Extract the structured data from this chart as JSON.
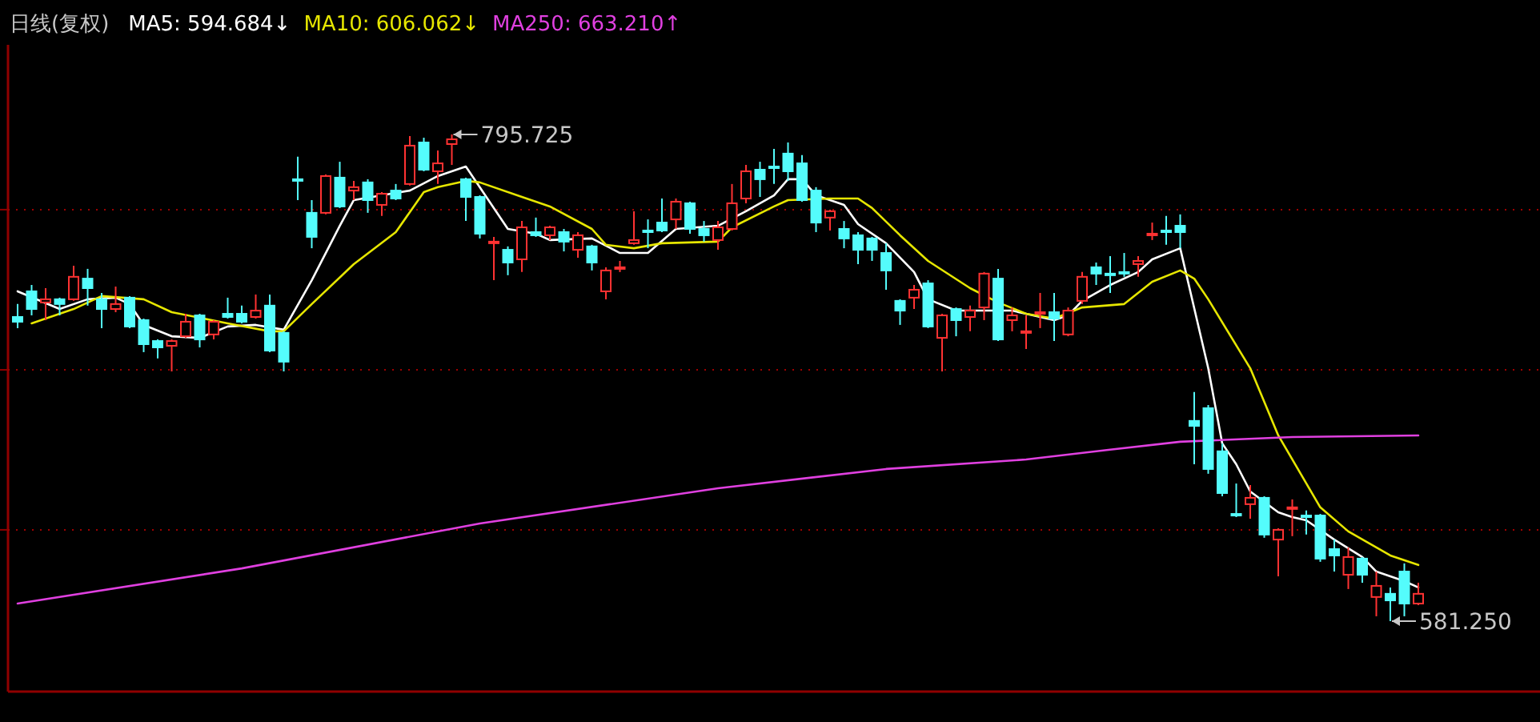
{
  "chart_data": {
    "type": "candlestick",
    "title": "日线(复权)",
    "legend": "top left",
    "grid": "y",
    "marker": "none",
    "categories": [
      null,
      null,
      null,
      null,
      null,
      null,
      null,
      null,
      null,
      null,
      null,
      null,
      null,
      null,
      null,
      null,
      null,
      null,
      null,
      null,
      null,
      null,
      null,
      null,
      null,
      null,
      null,
      null,
      null,
      null,
      null,
      null,
      null,
      null,
      null,
      null,
      null,
      null,
      null,
      null,
      null,
      null,
      null,
      null,
      null,
      null,
      null,
      null,
      null,
      null,
      null,
      null,
      null,
      null,
      null,
      null,
      null,
      null,
      null,
      null,
      null,
      null,
      null,
      null,
      null,
      null,
      null,
      null,
      null,
      null,
      null,
      null,
      null,
      null,
      null,
      null,
      null,
      null,
      null,
      null,
      null,
      null,
      null,
      null,
      null,
      null,
      null,
      null,
      null,
      null,
      null,
      null,
      null,
      null,
      null,
      null,
      null,
      null,
      null,
      null,
      null
    ],
    "ohlc": [
      [
        715.3,
        721.0,
        710.4,
        713.2
      ],
      [
        726.6,
        729.4,
        716.0,
        718.8
      ],
      [
        721.7,
        728.0,
        713.9,
        723.1
      ],
      [
        723.1,
        723.8,
        716.0,
        721.0
      ],
      [
        723.1,
        737.9,
        722.4,
        733.0
      ],
      [
        732.2,
        736.5,
        720.3,
        728.0
      ],
      [
        723.1,
        725.9,
        710.4,
        718.8
      ],
      [
        718.8,
        728.7,
        717.4,
        721.0
      ],
      [
        723.8,
        724.5,
        710.4,
        711.1
      ],
      [
        713.9,
        714.6,
        699.8,
        703.3
      ],
      [
        704.7,
        705.4,
        697.0,
        701.9
      ],
      [
        702.6,
        705.4,
        691.3,
        704.7
      ],
      [
        706.8,
        716.7,
        706.1,
        713.2
      ],
      [
        716.0,
        716.7,
        701.9,
        705.4
      ],
      [
        707.6,
        713.9,
        705.4,
        713.2
      ],
      [
        716.7,
        723.8,
        714.6,
        715.3
      ],
      [
        716.7,
        720.3,
        712.5,
        713.2
      ],
      [
        715.3,
        725.2,
        714.6,
        718.1
      ],
      [
        720.3,
        725.2,
        699.8,
        700.5
      ],
      [
        708.3,
        709.0,
        691.3,
        695.6
      ],
      [
        776.0,
        785.9,
        766.8,
        775.3
      ],
      [
        761.2,
        766.8,
        745.6,
        750.6
      ],
      [
        761.2,
        778.1,
        760.5,
        777.4
      ],
      [
        776.7,
        783.7,
        763.3,
        764.0
      ],
      [
        771.0,
        775.3,
        766.8,
        772.5
      ],
      [
        774.6,
        776.0,
        761.2,
        766.8
      ],
      [
        764.7,
        770.3,
        759.8,
        769.6
      ],
      [
        771.0,
        773.9,
        766.8,
        767.5
      ],
      [
        773.9,
        795.0,
        773.2,
        790.8
      ],
      [
        792.2,
        794.3,
        779.5,
        780.2
      ],
      [
        779.5,
        788.7,
        773.9,
        783.0
      ],
      [
        791.5,
        795.725,
        782.3,
        793.6
      ],
      [
        776.0,
        776.7,
        757.6,
        768.2
      ],
      [
        768.2,
        768.9,
        749.9,
        752.0
      ],
      [
        747.8,
        750.6,
        731.5,
        748.5
      ],
      [
        744.9,
        746.4,
        733.7,
        739.3
      ],
      [
        740.7,
        757.6,
        735.1,
        754.8
      ],
      [
        752.7,
        759.1,
        750.6,
        751.3
      ],
      [
        751.3,
        755.5,
        749.2,
        754.8
      ],
      [
        752.7,
        754.1,
        744.2,
        748.5
      ],
      [
        744.9,
        752.7,
        741.4,
        751.3
      ],
      [
        746.4,
        747.1,
        735.8,
        739.3
      ],
      [
        726.6,
        737.2,
        723.1,
        735.8
      ],
      [
        736.5,
        740.0,
        735.1,
        737.2
      ],
      [
        747.8,
        761.9,
        747.1,
        749.2
      ],
      [
        753.4,
        758.3,
        745.6,
        752.7
      ],
      [
        756.9,
        767.5,
        752.7,
        753.4
      ],
      [
        758.3,
        767.5,
        754.1,
        766.1
      ],
      [
        765.4,
        766.1,
        752.0,
        754.1
      ],
      [
        754.1,
        757.6,
        748.5,
        751.3
      ],
      [
        749.2,
        757.6,
        744.9,
        754.8
      ],
      [
        754.1,
        773.9,
        753.4,
        765.4
      ],
      [
        767.5,
        782.3,
        765.4,
        779.5
      ],
      [
        780.2,
        783.7,
        768.2,
        776.0
      ],
      [
        781.6,
        789.4,
        773.9,
        780.9
      ],
      [
        787.3,
        792.2,
        775.3,
        779.5
      ],
      [
        783.0,
        786.6,
        766.1,
        766.8
      ],
      [
        771.0,
        772.5,
        752.7,
        756.9
      ],
      [
        759.1,
        762.6,
        753.4,
        761.9
      ],
      [
        754.1,
        757.6,
        745.6,
        749.9
      ],
      [
        751.3,
        752.7,
        738.6,
        744.9
      ],
      [
        749.9,
        750.6,
        740.0,
        744.9
      ],
      [
        743.5,
        747.8,
        727.3,
        735.8
      ],
      [
        722.4,
        723.1,
        711.8,
        718.1
      ],
      [
        723.8,
        729.4,
        718.8,
        727.3
      ],
      [
        730.1,
        731.5,
        710.4,
        711.1
      ],
      [
        706.1,
        716.7,
        691.3,
        716.0
      ],
      [
        718.8,
        719.5,
        706.8,
        713.9
      ],
      [
        715.3,
        720.3,
        709.0,
        718.1
      ],
      [
        719.5,
        735.1,
        713.9,
        734.4
      ],
      [
        732.2,
        736.5,
        704.7,
        705.4
      ],
      [
        713.9,
        719.5,
        709.0,
        716.0
      ],
      [
        708.3,
        716.0,
        701.2,
        709.0
      ],
      [
        716.7,
        725.9,
        710.4,
        717.4
      ],
      [
        717.4,
        725.9,
        704.7,
        714.6
      ],
      [
        707.6,
        719.5,
        706.8,
        718.1
      ],
      [
        722.4,
        735.1,
        721.0,
        733.0
      ],
      [
        737.2,
        739.3,
        729.4,
        734.4
      ],
      [
        734.4,
        742.1,
        725.9,
        733.7
      ],
      [
        735.1,
        743.5,
        733.0,
        734.4
      ],
      [
        738.6,
        742.1,
        733.0,
        740.0
      ],
      [
        751.3,
        756.9,
        749.2,
        752.0
      ],
      [
        753.4,
        759.8,
        747.1,
        752.7
      ],
      [
        755.5,
        760.5,
        745.6,
        752.7
      ],
      [
        669.5,
        682.2,
        650.4,
        667.3
      ],
      [
        675.1,
        676.5,
        646.2,
        648.3
      ],
      [
        656.1,
        659.6,
        636.3,
        637.7
      ],
      [
        628.5,
        641.9,
        627.1,
        627.8
      ],
      [
        632.8,
        641.2,
        626.4,
        635.6
      ],
      [
        635.6,
        636.3,
        618.0,
        619.4
      ],
      [
        617.2,
        622.2,
        601.0,
        621.5
      ],
      [
        630.7,
        634.9,
        618.7,
        631.4
      ],
      [
        627.8,
        630.0,
        619.4,
        627.1
      ],
      [
        627.8,
        628.5,
        607.4,
        608.8
      ],
      [
        613.0,
        617.2,
        603.1,
        610.2
      ],
      [
        601.7,
        613.7,
        595.4,
        609.5
      ],
      [
        608.8,
        609.5,
        598.2,
        601.7
      ],
      [
        591.9,
        603.1,
        583.4,
        596.8
      ],
      [
        593.3,
        596.1,
        581.25,
        590.4
      ],
      [
        603.1,
        606.7,
        583.4,
        589.0
      ],
      [
        589.0,
        598.2,
        588.3,
        593.3
      ]
    ],
    "colors": [
      "#54fcfc",
      "#54fcfc",
      "#ff3232",
      "#54fcfc",
      "#ff3232",
      "#54fcfc",
      "#54fcfc",
      "#ff3232",
      "#54fcfc",
      "#54fcfc",
      "#54fcfc",
      "#ff3232",
      "#ff3232",
      "#54fcfc",
      "#ff3232",
      "#54fcfc",
      "#54fcfc",
      "#ff3232",
      "#54fcfc",
      "#54fcfc",
      "#54fcfc",
      "#54fcfc",
      "#ff3232",
      "#54fcfc",
      "#ff3232",
      "#54fcfc",
      "#ff3232",
      "#54fcfc",
      "#ff3232",
      "#54fcfc",
      "#ff3232",
      "#ff3232",
      "#54fcfc",
      "#54fcfc",
      "#ff3232",
      "#54fcfc",
      "#ff3232",
      "#54fcfc",
      "#ff3232",
      "#54fcfc",
      "#ff3232",
      "#54fcfc",
      "#ff3232",
      "#ff3232",
      "#ff3232",
      "#54fcfc",
      "#54fcfc",
      "#ff3232",
      "#54fcfc",
      "#54fcfc",
      "#ff3232",
      "#ff3232",
      "#ff3232",
      "#54fcfc",
      "#54fcfc",
      "#54fcfc",
      "#54fcfc",
      "#54fcfc",
      "#ff3232",
      "#54fcfc",
      "#54fcfc",
      "#54fcfc",
      "#54fcfc",
      "#54fcfc",
      "#ff3232",
      "#54fcfc",
      "#ff3232",
      "#54fcfc",
      "#ff3232",
      "#ff3232",
      "#54fcfc",
      "#ff3232",
      "#ff3232",
      "#ff3232",
      "#54fcfc",
      "#ff3232",
      "#ff3232",
      "#54fcfc",
      "#54fcfc",
      "#54fcfc",
      "#ff3232",
      "#ff3232",
      "#54fcfc",
      "#54fcfc",
      "#54fcfc",
      "#54fcfc",
      "#54fcfc",
      "#54fcfc",
      "#ff3232",
      "#54fcfc",
      "#ff3232",
      "#ff3232",
      "#54fcfc",
      "#54fcfc",
      "#54fcfc",
      "#ff3232",
      "#54fcfc",
      "#ff3232",
      "#54fcfc",
      "#54fcfc",
      "#ff3232"
    ],
    "series": [
      {
        "name": "MA5: 594.684↓",
        "type": "line",
        "color": "#ffffff",
        "values": [
          726.6,
          null,
          null,
          718.8,
          null,
          723.1,
          null,
          723.8,
          721.0,
          711.8,
          null,
          706.8,
          null,
          706.1,
          null,
          711.1,
          null,
          711.8,
          null,
          709.7,
          null,
          731.5,
          null,
          755.5,
          766.8,
          null,
          768.9,
          null,
          771.0,
          null,
          777.4,
          null,
          781.6,
          null,
          null,
          754.1,
          null,
          752.0,
          749.2,
          null,
          null,
          749.9,
          null,
          743.5,
          null,
          743.5,
          null,
          754.1,
          null,
          null,
          755.5,
          null,
          761.9,
          null,
          768.9,
          776.0,
          776.0,
          768.9,
          null,
          764.7,
          756.2,
          null,
          747.8,
          null,
          735.1,
          723.1,
          null,
          718.1,
          null,
          null,
          null,
          718.1,
          716.7,
          null,
          713.9,
          716.0,
          722.4,
          null,
          729.4,
          null,
          735.1,
          740.7,
          null,
          745.6,
          null,
          692.7,
          659.6,
          650.4,
          638.4,
          null,
          629.2,
          627.1,
          625.7,
          null,
          617.2,
          null,
          609.5,
          603.1,
          null,
          598.9,
          596.1
        ]
      },
      {
        "name": "MA10: 606.062↓",
        "type": "line",
        "color": "#e6e600",
        "values": [
          null,
          712.5,
          null,
          null,
          718.8,
          null,
          724.5,
          null,
          null,
          723.1,
          null,
          717.4,
          null,
          null,
          null,
          712.5,
          null,
          null,
          709.0,
          709.0,
          null,
          721.0,
          null,
          null,
          738.6,
          null,
          null,
          752.7,
          null,
          770.3,
          772.5,
          null,
          775.3,
          774.6,
          null,
          null,
          768.2,
          null,
          764.0,
          null,
          null,
          754.1,
          747.1,
          null,
          745.6,
          null,
          747.8,
          null,
          null,
          null,
          748.5,
          754.8,
          null,
          null,
          764.0,
          766.8,
          null,
          null,
          767.5,
          null,
          767.5,
          763.3,
          null,
          751.3,
          null,
          740.0,
          null,
          null,
          728.0,
          null,
          721.7,
          null,
          716.7,
          null,
          714.6,
          null,
          719.5,
          null,
          null,
          721.0,
          null,
          730.8,
          null,
          735.8,
          732.2,
          723.1,
          null,
          null,
          692.7,
          null,
          663.1,
          null,
          null,
          631.4,
          null,
          620.8,
          null,
          null,
          610.2,
          null,
          606.0
        ]
      },
      {
        "name": "MA250: 663.210↑",
        "type": "line",
        "color": "#e040e0",
        "values": [
          589.0,
          null,
          null,
          null,
          null,
          null,
          null,
          null,
          null,
          null,
          null,
          null,
          null,
          null,
          null,
          null,
          604.5,
          null,
          null,
          null,
          null,
          null,
          null,
          null,
          null,
          null,
          null,
          null,
          null,
          null,
          null,
          null,
          null,
          624.3,
          null,
          null,
          null,
          null,
          null,
          null,
          null,
          null,
          null,
          null,
          null,
          null,
          null,
          null,
          null,
          null,
          639.8,
          null,
          null,
          null,
          null,
          null,
          null,
          null,
          null,
          null,
          null,
          null,
          648.3,
          null,
          null,
          null,
          null,
          null,
          null,
          null,
          null,
          null,
          652.5,
          null,
          null,
          null,
          null,
          null,
          656.8,
          null,
          null,
          null,
          null,
          660.3,
          null,
          null,
          null,
          null,
          null,
          null,
          null,
          662.4,
          null,
          null,
          null,
          null,
          null,
          null,
          null,
          null,
          663.1
        ]
      }
    ],
    "yticks": [
      {
        "value": 762.6,
        "label": null
      },
      {
        "value": 692.0,
        "label": null
      },
      {
        "value": 621.5,
        "label": null
      }
    ],
    "annotations": [
      "795.725",
      "581.250"
    ]
  }
}
